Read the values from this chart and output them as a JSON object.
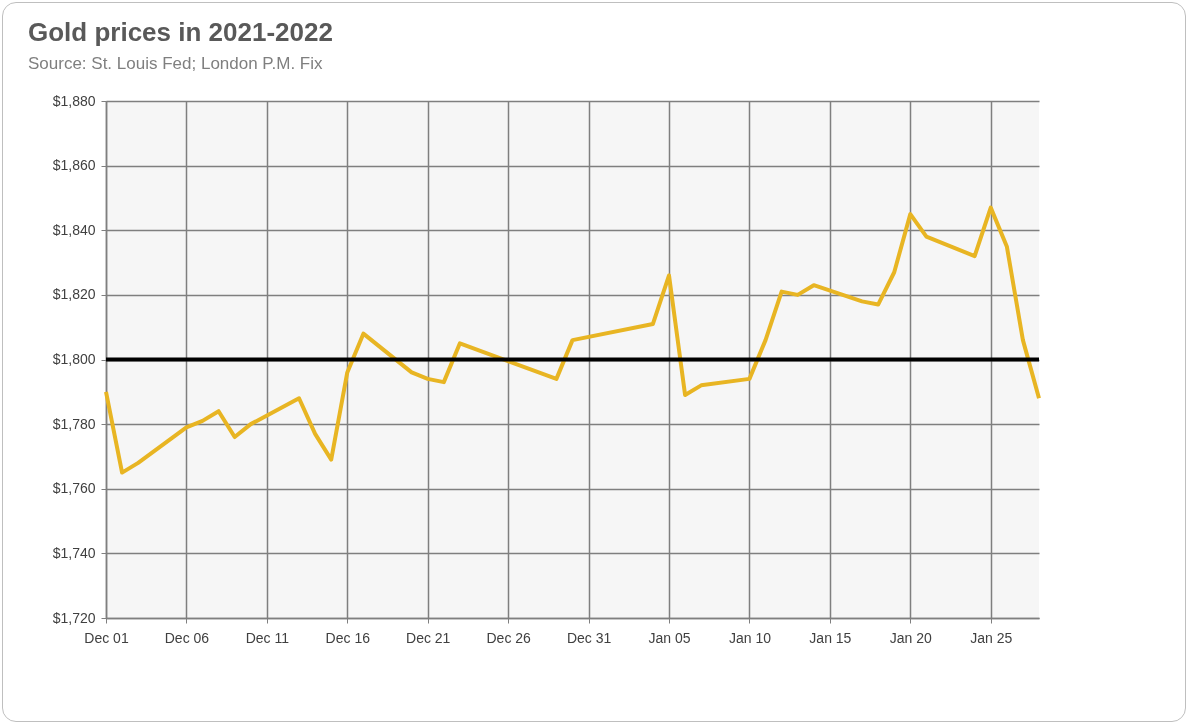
{
  "chart_data": {
    "type": "line",
    "title": "Gold prices in 2021-2022",
    "subtitle": "Source: St. Louis Fed; London P.M. Fix",
    "x": [
      "2021-12-01",
      "2021-12-02",
      "2021-12-03",
      "2021-12-06",
      "2021-12-07",
      "2021-12-08",
      "2021-12-09",
      "2021-12-10",
      "2021-12-13",
      "2021-12-14",
      "2021-12-15",
      "2021-12-16",
      "2021-12-17",
      "2021-12-20",
      "2021-12-21",
      "2021-12-22",
      "2021-12-23",
      "2021-12-29",
      "2021-12-30",
      "2022-01-04",
      "2022-01-05",
      "2022-01-06",
      "2022-01-07",
      "2022-01-10",
      "2022-01-11",
      "2022-01-12",
      "2022-01-13",
      "2022-01-14",
      "2022-01-17",
      "2022-01-18",
      "2022-01-19",
      "2022-01-20",
      "2022-01-21",
      "2022-01-24",
      "2022-01-25",
      "2022-01-26",
      "2022-01-27",
      "2022-01-28"
    ],
    "series": [
      {
        "color": "#e8b523",
        "values": [
          1790,
          1765,
          1768,
          1779,
          1781,
          1784,
          1776,
          1780,
          1788,
          1777,
          1769,
          1796,
          1808,
          1796,
          1794,
          1793,
          1805,
          1794,
          1806,
          1811,
          1826,
          1789,
          1792,
          1794,
          1806,
          1821,
          1820,
          1823,
          1818,
          1817,
          1827,
          1845,
          1838,
          1832,
          1847,
          1835,
          1806,
          1788
        ]
      }
    ],
    "xlim": [
      "2021-12-01",
      "2022-01-28"
    ],
    "xticks": [
      {
        "value": "2021-12-01",
        "label": "Dec 01"
      },
      {
        "value": "2021-12-06",
        "label": "Dec 06"
      },
      {
        "value": "2021-12-11",
        "label": "Dec 11"
      },
      {
        "value": "2021-12-16",
        "label": "Dec 16"
      },
      {
        "value": "2021-12-21",
        "label": "Dec 21"
      },
      {
        "value": "2021-12-26",
        "label": "Dec 26"
      },
      {
        "value": "2021-12-31",
        "label": "Dec 31"
      },
      {
        "value": "2022-01-05",
        "label": "Jan 05"
      },
      {
        "value": "2022-01-10",
        "label": "Jan 10"
      },
      {
        "value": "2022-01-15",
        "label": "Jan 15"
      },
      {
        "value": "2022-01-20",
        "label": "Jan 20"
      },
      {
        "value": "2022-01-25",
        "label": "Jan 25"
      }
    ],
    "ylim": [
      1720,
      1880
    ],
    "yticks": [
      {
        "value": 1720,
        "label": "$1,720"
      },
      {
        "value": 1740,
        "label": "$1,740"
      },
      {
        "value": 1760,
        "label": "$1,760"
      },
      {
        "value": 1780,
        "label": "$1,780"
      },
      {
        "value": 1800,
        "label": "$1,800"
      },
      {
        "value": 1820,
        "label": "$1,820"
      },
      {
        "value": 1840,
        "label": "$1,840"
      },
      {
        "value": 1860,
        "label": "$1,860"
      },
      {
        "value": 1880,
        "label": "$1,880"
      }
    ],
    "ref_lines": [
      {
        "axis": "y",
        "value": 1800,
        "color": "#000000"
      }
    ],
    "grid": true,
    "marker": "none",
    "line_style": "solid"
  }
}
